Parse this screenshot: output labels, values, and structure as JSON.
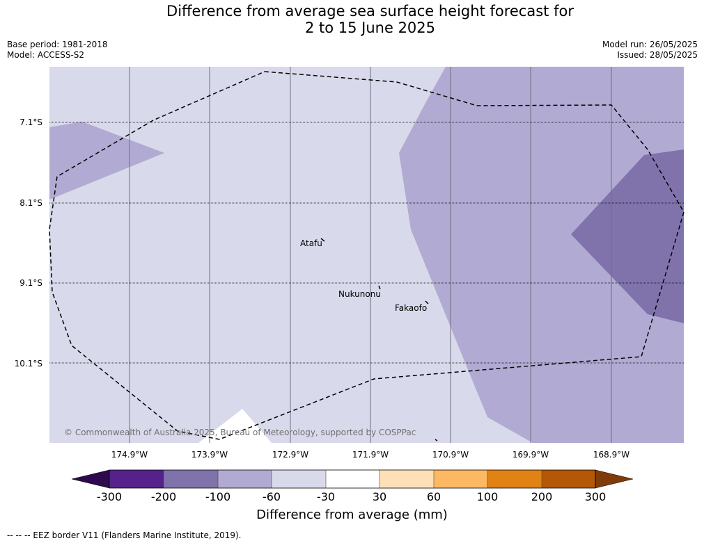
{
  "title_line1": "Difference from average sea surface height forecast for",
  "title_line2": "2 to 15 June 2025",
  "base_period": "Base period: 1981-2018",
  "model": "Model: ACCESS-S2",
  "model_run": "Model run: 26/05/2025",
  "issued": "Issued: 28/05/2025",
  "latitudes": [
    "7.1°S",
    "8.1°S",
    "9.1°S",
    "10.1°S"
  ],
  "longitudes": [
    "174.9°W",
    "173.9°W",
    "172.9°W",
    "171.9°W",
    "170.9°W",
    "169.9°W",
    "168.9°W"
  ],
  "places": {
    "atafu": "Atafu",
    "nukunonu": "Nukunonu",
    "fakaofo": "Fakaofo"
  },
  "copyright": "© Commonwealth of Australia 2025, Bureau of Meteorology, supported by COSPPac",
  "colorbar": {
    "title": "Difference from average (mm)",
    "ticks": [
      "-300",
      "-200",
      "-100",
      "-60",
      "-30",
      "30",
      "60",
      "100",
      "200",
      "300"
    ],
    "colors": {
      "lt_neg300": "#2d0a4e",
      "neg300_neg200": "#54228a",
      "neg200_neg100": "#8073ac",
      "neg100_neg60": "#b1aad2",
      "neg60_neg30": "#d8d9eb",
      "neg30_30": "#ffffff",
      "p30_60": "#fee0b6",
      "p60_100": "#fdb863",
      "p100_200": "#e08214",
      "p200_300": "#b35806",
      "gt_300": "#7f3b08"
    }
  },
  "legend_eez": "-- -- -- EEZ border V11 (Flanders Marine Institute, 2019)."
}
